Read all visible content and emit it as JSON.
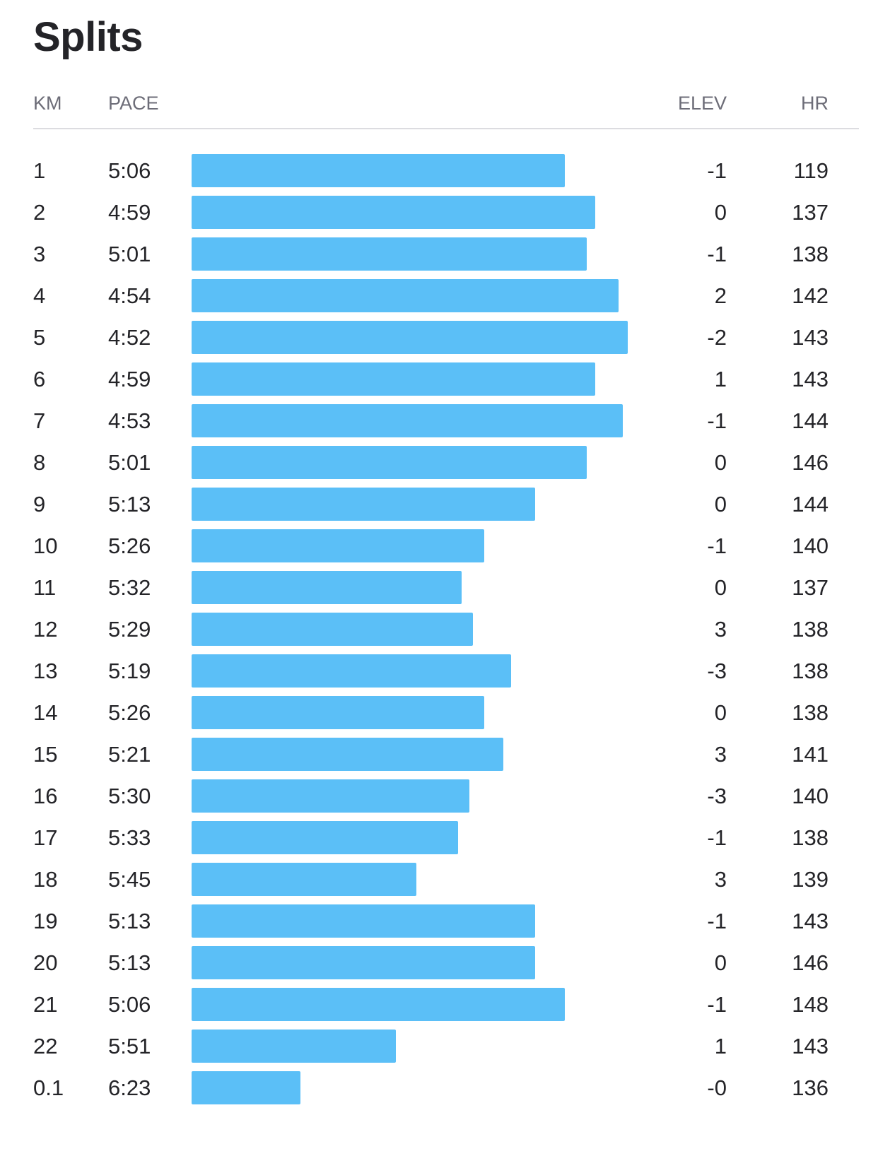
{
  "title": "Splits",
  "columns": {
    "km": "KM",
    "pace": "PACE",
    "elev": "ELEV",
    "hr": "HR"
  },
  "bar_color": "#5bbff7",
  "splits": [
    {
      "km": "1",
      "pace": "5:06",
      "elev": "-1",
      "hr": "119"
    },
    {
      "km": "2",
      "pace": "4:59",
      "elev": "0",
      "hr": "137"
    },
    {
      "km": "3",
      "pace": "5:01",
      "elev": "-1",
      "hr": "138"
    },
    {
      "km": "4",
      "pace": "4:54",
      "elev": "2",
      "hr": "142"
    },
    {
      "km": "5",
      "pace": "4:52",
      "elev": "-2",
      "hr": "143"
    },
    {
      "km": "6",
      "pace": "4:59",
      "elev": "1",
      "hr": "143"
    },
    {
      "km": "7",
      "pace": "4:53",
      "elev": "-1",
      "hr": "144"
    },
    {
      "km": "8",
      "pace": "5:01",
      "elev": "0",
      "hr": "146"
    },
    {
      "km": "9",
      "pace": "5:13",
      "elev": "0",
      "hr": "144"
    },
    {
      "km": "10",
      "pace": "5:26",
      "elev": "-1",
      "hr": "140"
    },
    {
      "km": "11",
      "pace": "5:32",
      "elev": "0",
      "hr": "137"
    },
    {
      "km": "12",
      "pace": "5:29",
      "elev": "3",
      "hr": "138"
    },
    {
      "km": "13",
      "pace": "5:19",
      "elev": "-3",
      "hr": "138"
    },
    {
      "km": "14",
      "pace": "5:26",
      "elev": "0",
      "hr": "138"
    },
    {
      "km": "15",
      "pace": "5:21",
      "elev": "3",
      "hr": "141"
    },
    {
      "km": "16",
      "pace": "5:30",
      "elev": "-3",
      "hr": "140"
    },
    {
      "km": "17",
      "pace": "5:33",
      "elev": "-1",
      "hr": "138"
    },
    {
      "km": "18",
      "pace": "5:45",
      "elev": "3",
      "hr": "139"
    },
    {
      "km": "19",
      "pace": "5:13",
      "elev": "-1",
      "hr": "143"
    },
    {
      "km": "20",
      "pace": "5:13",
      "elev": "0",
      "hr": "146"
    },
    {
      "km": "21",
      "pace": "5:06",
      "elev": "-1",
      "hr": "148"
    },
    {
      "km": "22",
      "pace": "5:51",
      "elev": "1",
      "hr": "143"
    },
    {
      "km": "0.1",
      "pace": "6:23",
      "elev": "-0",
      "hr": "136"
    }
  ]
}
